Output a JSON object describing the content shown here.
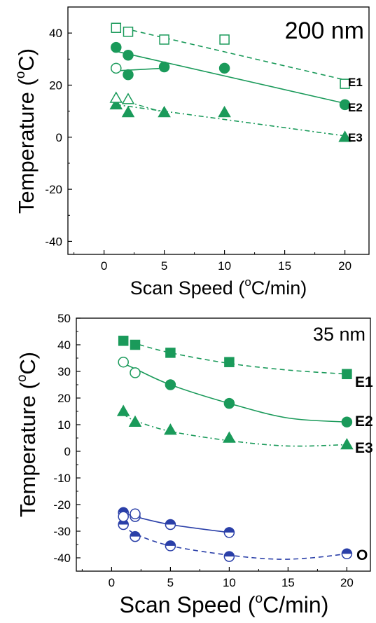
{
  "colors": {
    "green": "#1a9a5a",
    "blue": "#2a3fa8",
    "axis": "#000000"
  },
  "chart_data": [
    {
      "type": "scatter",
      "title": "200 nm",
      "xlabel": "Scan Speed (",
      "xlabel_sup": "o",
      "xlabel_tail": "C/min)",
      "ylabel": "Temperature (",
      "ylabel_sup": "o",
      "ylabel_tail": "C)",
      "xlim": [
        -3,
        22
      ],
      "ylim": [
        -45,
        50
      ],
      "xticks": [
        0,
        5,
        10,
        15,
        20
      ],
      "yticks": [
        -40,
        -20,
        0,
        20,
        40
      ],
      "xtick_labels": [
        "0",
        "5",
        "10",
        "15",
        "20"
      ],
      "ytick_labels": [
        "-40",
        "-20",
        "0",
        "20",
        "40"
      ],
      "series": [
        {
          "name": "E1",
          "color": "green",
          "marker": "square",
          "filled": false,
          "line": "dash",
          "x": [
            1,
            2,
            5,
            10,
            20
          ],
          "y": [
            42,
            40.5,
            37.5,
            37.5,
            20.5
          ],
          "fit": [
            [
              1,
              42.5
            ],
            [
              20,
              22
            ]
          ]
        },
        {
          "name": "E2",
          "color": "green",
          "marker": "circle",
          "filled": true,
          "line": "solid",
          "x": [
            1,
            2,
            5,
            10,
            20
          ],
          "y": [
            34.5,
            31.5,
            27,
            26.5,
            12.5
          ],
          "fit": [
            [
              1,
              33
            ],
            [
              20,
              13
            ]
          ]
        },
        {
          "color": "green",
          "marker": "circle",
          "filled": false,
          "line": "solid",
          "x": [
            1
          ],
          "y": [
            26.5
          ]
        },
        {
          "color": "green",
          "marker": "circle",
          "filled": true,
          "line": "none",
          "x": [
            2
          ],
          "y": [
            24
          ]
        },
        {
          "color": "green",
          "marker": "none",
          "filled": false,
          "line": "solid",
          "x": [],
          "y": [],
          "fit": [
            [
              1,
              25.5
            ],
            [
              5,
              26.5
            ]
          ]
        },
        {
          "name": "E3",
          "color": "green",
          "marker": "triangle",
          "filled": true,
          "line": "dashdot",
          "x": [
            1,
            2,
            5,
            10,
            20
          ],
          "y": [
            12.5,
            9.5,
            9.5,
            9.5,
            0
          ],
          "fit": [
            [
              1,
              12.5
            ],
            [
              20,
              0.5
            ]
          ]
        },
        {
          "color": "green",
          "marker": "triangle",
          "filled": false,
          "line": "none",
          "x": [
            1,
            2
          ],
          "y": [
            15,
            14.5
          ],
          "fit": [
            [
              1,
              14.5
            ],
            [
              2,
              13.5
            ],
            [
              5,
              9.5
            ]
          ]
        }
      ]
    },
    {
      "type": "scatter",
      "title": "35 nm",
      "xlabel": "Scan Speed (",
      "xlabel_sup": "o",
      "xlabel_tail": "C/min)",
      "ylabel": "Temperature (",
      "ylabel_sup": "o",
      "ylabel_tail": "C)",
      "xlim": [
        -3,
        22
      ],
      "ylim": [
        -45,
        50
      ],
      "xticks": [
        0,
        5,
        10,
        15,
        20
      ],
      "yticks": [
        -40,
        -30,
        -20,
        -10,
        0,
        10,
        20,
        30,
        40,
        50
      ],
      "xtick_labels": [
        "0",
        "5",
        "10",
        "15",
        "20"
      ],
      "ytick_labels": [
        "-40",
        "-30",
        "-20",
        "-10",
        "0",
        "10",
        "20",
        "30",
        "40",
        "50"
      ],
      "series": [
        {
          "name": "E1",
          "color": "green",
          "marker": "square",
          "filled": true,
          "line": "dash",
          "x": [
            1,
            2,
            5,
            10,
            20
          ],
          "y": [
            41.5,
            40,
            37,
            33.5,
            29
          ],
          "fit": [
            [
              1,
              42
            ],
            [
              2,
              40.5
            ],
            [
              5,
              37
            ],
            [
              10,
              33
            ],
            [
              15,
              30.5
            ],
            [
              20,
              29
            ]
          ]
        },
        {
          "name": "E2",
          "color": "green",
          "marker": "circle",
          "filled": true,
          "line": "solid",
          "x": [
            5,
            10,
            20
          ],
          "y": [
            25,
            18,
            11
          ],
          "fit": [
            [
              1,
              33
            ],
            [
              2,
              31
            ],
            [
              5,
              25
            ],
            [
              10,
              18
            ],
            [
              15,
              12.5
            ],
            [
              20,
              11
            ]
          ]
        },
        {
          "color": "green",
          "marker": "circle",
          "filled": false,
          "line": "none",
          "x": [
            1,
            2
          ],
          "y": [
            33.5,
            29.5
          ]
        },
        {
          "name": "E3",
          "color": "green",
          "marker": "triangle",
          "filled": true,
          "line": "dashdot",
          "x": [
            1,
            2,
            5,
            10,
            20
          ],
          "y": [
            15,
            11,
            8,
            5,
            2.5
          ],
          "fit": [
            [
              1,
              14
            ],
            [
              2,
              11.5
            ],
            [
              5,
              7.5
            ],
            [
              10,
              4
            ],
            [
              15,
              2
            ],
            [
              20,
              2.5
            ]
          ]
        },
        {
          "name": "O",
          "color": "blue",
          "marker": "circle",
          "filled": "half",
          "line": "solid",
          "x": [
            1,
            2,
            5,
            10
          ],
          "y": [
            -23,
            -24.5,
            -27.5,
            -30.5
          ],
          "fit": [
            [
              1,
              -23
            ],
            [
              2,
              -24.5
            ],
            [
              5,
              -27.5
            ],
            [
              10,
              -30.5
            ]
          ]
        },
        {
          "color": "blue",
          "marker": "circle",
          "filled": "half",
          "line": "dash",
          "x": [
            1,
            2,
            5,
            10,
            20
          ],
          "y": [
            -27.5,
            -32,
            -35.5,
            -39.5,
            -38.5
          ],
          "fit": [
            [
              1,
              -27.5
            ],
            [
              2,
              -31
            ],
            [
              5,
              -35.5
            ],
            [
              10,
              -39
            ],
            [
              14,
              -40.5
            ],
            [
              17,
              -40
            ],
            [
              20,
              -38.5
            ]
          ]
        },
        {
          "color": "blue",
          "marker": "circle",
          "filled": false,
          "line": "none",
          "x": [
            1,
            2
          ],
          "y": [
            -24.5,
            -23.5
          ]
        }
      ]
    }
  ]
}
